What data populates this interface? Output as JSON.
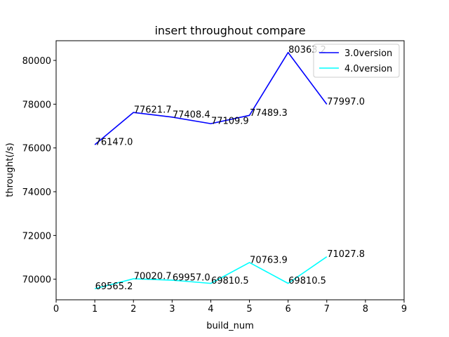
{
  "chart_data": {
    "type": "line",
    "title": "insert throughout compare",
    "xlabel": "build_num",
    "ylabel": "throught(/s)",
    "xlim": [
      0,
      9
    ],
    "ylim": [
      69060,
      80900
    ],
    "xticks": [
      0,
      1,
      2,
      3,
      4,
      5,
      6,
      7,
      8,
      9
    ],
    "yticks": [
      70000,
      72000,
      74000,
      76000,
      78000,
      80000
    ],
    "grid": false,
    "legend_position": "top-right",
    "series": [
      {
        "name": "3.0version",
        "color": "#0000ff",
        "x": [
          1,
          2,
          3,
          4,
          5,
          6,
          7
        ],
        "y": [
          76147.0,
          77621.7,
          77408.4,
          77109.9,
          77489.3,
          80363.2,
          77997.0
        ],
        "labels": [
          "76147.0",
          "77621.7",
          "77408.4",
          "77109.9",
          "77489.3",
          "80363.2",
          "77997.0"
        ]
      },
      {
        "name": "4.0version",
        "color": "#00ffff",
        "x": [
          1,
          2,
          3,
          4,
          5,
          6,
          7
        ],
        "y": [
          69565.2,
          70020.7,
          69957.0,
          69810.5,
          70763.9,
          69810.5,
          71027.8
        ],
        "labels": [
          "69565.2",
          "70020.7",
          "69957.0",
          "69810.5",
          "70763.9",
          "69810.5",
          "71027.8"
        ]
      }
    ]
  }
}
